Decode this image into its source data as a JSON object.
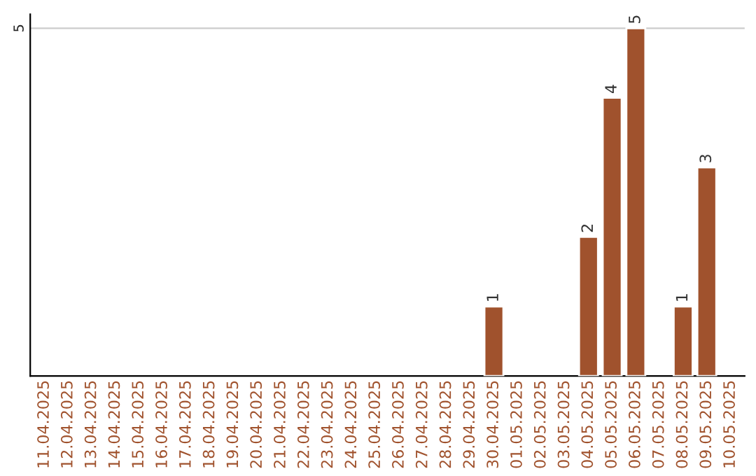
{
  "chart_data": {
    "type": "bar",
    "categories": [
      "11.04.2025",
      "12.04.2025",
      "13.04.2025",
      "14.04.2025",
      "15.04.2025",
      "16.04.2025",
      "17.04.2025",
      "18.04.2025",
      "19.04.2025",
      "20.04.2025",
      "21.04.2025",
      "22.04.2025",
      "23.04.2025",
      "24.04.2025",
      "25.04.2025",
      "26.04.2025",
      "27.04.2025",
      "28.04.2025",
      "29.04.2025",
      "30.04.2025",
      "01.05.2025",
      "02.05.2025",
      "03.05.2025",
      "04.05.2025",
      "05.05.2025",
      "06.05.2025",
      "07.05.2025",
      "08.05.2025",
      "09.05.2025",
      "10.05.2025"
    ],
    "values": [
      null,
      null,
      null,
      null,
      null,
      null,
      null,
      null,
      null,
      null,
      null,
      null,
      null,
      null,
      null,
      null,
      null,
      null,
      null,
      1,
      null,
      null,
      null,
      2,
      4,
      5,
      null,
      1,
      3,
      null
    ],
    "data_labels": true,
    "color": "#a0522d",
    "ylim": [
      0,
      5.2
    ],
    "yticks": [
      5
    ],
    "grid": "y"
  }
}
